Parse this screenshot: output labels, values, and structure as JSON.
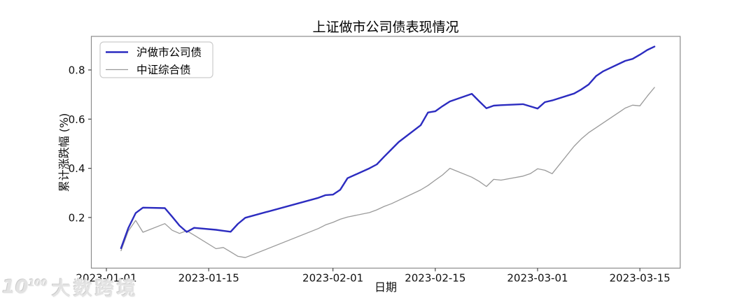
{
  "watermark": {
    "logo_base": "10",
    "logo_sup": "100",
    "brand": "大数跨境"
  },
  "chart_data": {
    "type": "line",
    "title": "上证做市公司债表现情况",
    "xlabel": "日期",
    "ylabel": "累计涨跌幅 (%)",
    "grid": false,
    "legend_position": "upper left",
    "background": "#ffffff",
    "spine_color": "#8c8c8c",
    "tick_color": "#444444",
    "label_color": "#111111",
    "ylim": [
      0.007,
      0.935
    ],
    "x_ticks": [
      {
        "date": "2023-01-01",
        "label": "2023-01-01"
      },
      {
        "date": "2023-01-15",
        "label": "2023-01-15"
      },
      {
        "date": "2023-02-01",
        "label": "2023-02-01"
      },
      {
        "date": "2023-02-15",
        "label": "2023-02-15"
      },
      {
        "date": "2023-03-01",
        "label": "2023-03-01"
      },
      {
        "date": "2023-03-15",
        "label": "2023-03-15"
      }
    ],
    "y_ticks": [
      {
        "value": 0.2,
        "label": "0.2"
      },
      {
        "value": 0.4,
        "label": "0.4"
      },
      {
        "value": 0.6,
        "label": "0.6"
      },
      {
        "value": 0.8,
        "label": "0.8"
      }
    ],
    "series": [
      {
        "name": "沪做市公司债",
        "color": "#2c2cc0",
        "width": 2.4,
        "points": [
          [
            "2023-01-03",
            0.075
          ],
          [
            "2023-01-04",
            0.157
          ],
          [
            "2023-01-05",
            0.218
          ],
          [
            "2023-01-06",
            0.24
          ],
          [
            "2023-01-09",
            0.238
          ],
          [
            "2023-01-10",
            0.203
          ],
          [
            "2023-01-11",
            0.167
          ],
          [
            "2023-01-12",
            0.141
          ],
          [
            "2023-01-13",
            0.158
          ],
          [
            "2023-01-16",
            0.15
          ],
          [
            "2023-01-17",
            0.146
          ],
          [
            "2023-01-18",
            0.142
          ],
          [
            "2023-01-19",
            0.174
          ],
          [
            "2023-01-20",
            0.199
          ],
          [
            "2023-01-30",
            0.28
          ],
          [
            "2023-01-31",
            0.291
          ],
          [
            "2023-02-01",
            0.293
          ],
          [
            "2023-02-02",
            0.313
          ],
          [
            "2023-02-03",
            0.36
          ],
          [
            "2023-02-06",
            0.4
          ],
          [
            "2023-02-07",
            0.416
          ],
          [
            "2023-02-08",
            0.447
          ],
          [
            "2023-02-09",
            0.477
          ],
          [
            "2023-02-10",
            0.507
          ],
          [
            "2023-02-13",
            0.575
          ],
          [
            "2023-02-14",
            0.627
          ],
          [
            "2023-02-15",
            0.632
          ],
          [
            "2023-02-16",
            0.653
          ],
          [
            "2023-02-17",
            0.672
          ],
          [
            "2023-02-20",
            0.703
          ],
          [
            "2023-02-21",
            0.673
          ],
          [
            "2023-02-22",
            0.644
          ],
          [
            "2023-02-23",
            0.655
          ],
          [
            "2023-02-24",
            0.657
          ],
          [
            "2023-02-27",
            0.661
          ],
          [
            "2023-02-28",
            0.652
          ],
          [
            "2023-03-01",
            0.643
          ],
          [
            "2023-03-02",
            0.669
          ],
          [
            "2023-03-03",
            0.676
          ],
          [
            "2023-03-06",
            0.704
          ],
          [
            "2023-03-07",
            0.721
          ],
          [
            "2023-03-08",
            0.741
          ],
          [
            "2023-03-09",
            0.775
          ],
          [
            "2023-03-10",
            0.795
          ],
          [
            "2023-03-13",
            0.837
          ],
          [
            "2023-03-14",
            0.845
          ],
          [
            "2023-03-15",
            0.862
          ],
          [
            "2023-03-16",
            0.881
          ],
          [
            "2023-03-17",
            0.895
          ]
        ]
      },
      {
        "name": "中证综合债",
        "color": "#9a9a9a",
        "width": 1.3,
        "points": [
          [
            "2023-01-03",
            0.065
          ],
          [
            "2023-01-04",
            0.145
          ],
          [
            "2023-01-05",
            0.188
          ],
          [
            "2023-01-06",
            0.14
          ],
          [
            "2023-01-09",
            0.175
          ],
          [
            "2023-01-10",
            0.148
          ],
          [
            "2023-01-11",
            0.135
          ],
          [
            "2023-01-12",
            0.146
          ],
          [
            "2023-01-13",
            0.128
          ],
          [
            "2023-01-16",
            0.073
          ],
          [
            "2023-01-17",
            0.078
          ],
          [
            "2023-01-18",
            0.06
          ],
          [
            "2023-01-19",
            0.042
          ],
          [
            "2023-01-20",
            0.037
          ],
          [
            "2023-01-30",
            0.155
          ],
          [
            "2023-01-31",
            0.17
          ],
          [
            "2023-02-01",
            0.18
          ],
          [
            "2023-02-02",
            0.193
          ],
          [
            "2023-02-03",
            0.202
          ],
          [
            "2023-02-06",
            0.22
          ],
          [
            "2023-02-07",
            0.231
          ],
          [
            "2023-02-08",
            0.245
          ],
          [
            "2023-02-09",
            0.256
          ],
          [
            "2023-02-10",
            0.27
          ],
          [
            "2023-02-13",
            0.312
          ],
          [
            "2023-02-14",
            0.33
          ],
          [
            "2023-02-15",
            0.352
          ],
          [
            "2023-02-16",
            0.373
          ],
          [
            "2023-02-17",
            0.4
          ],
          [
            "2023-02-20",
            0.364
          ],
          [
            "2023-02-21",
            0.347
          ],
          [
            "2023-02-22",
            0.326
          ],
          [
            "2023-02-23",
            0.355
          ],
          [
            "2023-02-24",
            0.352
          ],
          [
            "2023-02-27",
            0.368
          ],
          [
            "2023-02-28",
            0.378
          ],
          [
            "2023-03-01",
            0.398
          ],
          [
            "2023-03-02",
            0.392
          ],
          [
            "2023-03-03",
            0.378
          ],
          [
            "2023-03-06",
            0.49
          ],
          [
            "2023-03-07",
            0.52
          ],
          [
            "2023-03-08",
            0.545
          ],
          [
            "2023-03-09",
            0.565
          ],
          [
            "2023-03-10",
            0.585
          ],
          [
            "2023-03-13",
            0.645
          ],
          [
            "2023-03-14",
            0.657
          ],
          [
            "2023-03-15",
            0.654
          ],
          [
            "2023-03-16",
            0.693
          ],
          [
            "2023-03-17",
            0.729
          ]
        ]
      }
    ]
  }
}
